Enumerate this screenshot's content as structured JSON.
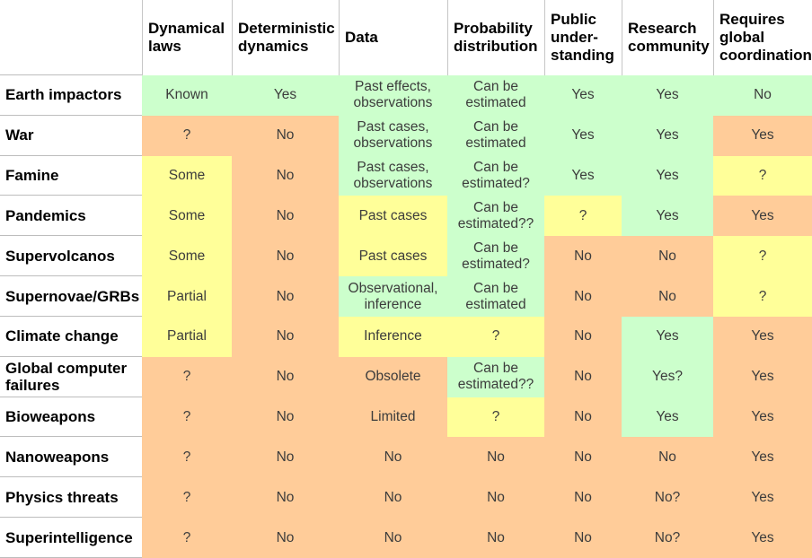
{
  "chart_data": {
    "type": "table",
    "corner_label": "",
    "colors": {
      "green": "#ccffcc",
      "yellow": "#ffff99",
      "orange": "#ffcc99"
    },
    "columns": [
      "Dynamical\nlaws",
      "Deterministic\ndynamics",
      "Data",
      "Probability\ndistribution",
      "Public\nunder-\nstanding",
      "Research\ncommunity",
      "Requires\nglobal\ncoordination"
    ],
    "rows": [
      {
        "label": "Earth impactors",
        "cells": [
          {
            "text": "Known",
            "color": "green"
          },
          {
            "text": "Yes",
            "color": "green"
          },
          {
            "text": "Past effects,\nobservations",
            "color": "green"
          },
          {
            "text": "Can be\nestimated",
            "color": "green"
          },
          {
            "text": "Yes",
            "color": "green"
          },
          {
            "text": "Yes",
            "color": "green"
          },
          {
            "text": "No",
            "color": "green"
          }
        ]
      },
      {
        "label": "War",
        "cells": [
          {
            "text": "?",
            "color": "orange"
          },
          {
            "text": "No",
            "color": "orange"
          },
          {
            "text": "Past cases,\nobservations",
            "color": "green"
          },
          {
            "text": "Can be\nestimated",
            "color": "green"
          },
          {
            "text": "Yes",
            "color": "green"
          },
          {
            "text": "Yes",
            "color": "green"
          },
          {
            "text": "Yes",
            "color": "orange"
          }
        ]
      },
      {
        "label": "Famine",
        "cells": [
          {
            "text": "Some",
            "color": "yellow"
          },
          {
            "text": "No",
            "color": "orange"
          },
          {
            "text": "Past cases,\nobservations",
            "color": "green"
          },
          {
            "text": "Can be\nestimated?",
            "color": "green"
          },
          {
            "text": "Yes",
            "color": "green"
          },
          {
            "text": "Yes",
            "color": "green"
          },
          {
            "text": "?",
            "color": "yellow"
          }
        ]
      },
      {
        "label": "Pandemics",
        "cells": [
          {
            "text": "Some",
            "color": "yellow"
          },
          {
            "text": "No",
            "color": "orange"
          },
          {
            "text": "Past cases",
            "color": "yellow"
          },
          {
            "text": "Can be\nestimated??",
            "color": "green"
          },
          {
            "text": "?",
            "color": "yellow"
          },
          {
            "text": "Yes",
            "color": "green"
          },
          {
            "text": "Yes",
            "color": "orange"
          }
        ]
      },
      {
        "label": "Supervolcanos",
        "cells": [
          {
            "text": "Some",
            "color": "yellow"
          },
          {
            "text": "No",
            "color": "orange"
          },
          {
            "text": "Past cases",
            "color": "yellow"
          },
          {
            "text": "Can be\nestimated?",
            "color": "green"
          },
          {
            "text": "No",
            "color": "orange"
          },
          {
            "text": "No",
            "color": "orange"
          },
          {
            "text": "?",
            "color": "yellow"
          }
        ]
      },
      {
        "label": "Supernovae/GRBs",
        "cells": [
          {
            "text": "Partial",
            "color": "yellow"
          },
          {
            "text": "No",
            "color": "orange"
          },
          {
            "text": "Observational,\ninference",
            "color": "green"
          },
          {
            "text": "Can be\nestimated",
            "color": "green"
          },
          {
            "text": "No",
            "color": "orange"
          },
          {
            "text": "No",
            "color": "orange"
          },
          {
            "text": "?",
            "color": "yellow"
          }
        ]
      },
      {
        "label": "Climate change",
        "cells": [
          {
            "text": "Partial",
            "color": "yellow"
          },
          {
            "text": "No",
            "color": "orange"
          },
          {
            "text": "Inference",
            "color": "yellow"
          },
          {
            "text": "?",
            "color": "yellow"
          },
          {
            "text": "No",
            "color": "orange"
          },
          {
            "text": "Yes",
            "color": "green"
          },
          {
            "text": "Yes",
            "color": "orange"
          }
        ]
      },
      {
        "label": "Global computer\nfailures",
        "cells": [
          {
            "text": "?",
            "color": "orange"
          },
          {
            "text": "No",
            "color": "orange"
          },
          {
            "text": "Obsolete",
            "color": "orange"
          },
          {
            "text": "Can be\nestimated??",
            "color": "green"
          },
          {
            "text": "No",
            "color": "orange"
          },
          {
            "text": "Yes?",
            "color": "green"
          },
          {
            "text": "Yes",
            "color": "orange"
          }
        ]
      },
      {
        "label": "Bioweapons",
        "cells": [
          {
            "text": "?",
            "color": "orange"
          },
          {
            "text": "No",
            "color": "orange"
          },
          {
            "text": "Limited",
            "color": "orange"
          },
          {
            "text": "?",
            "color": "yellow"
          },
          {
            "text": "No",
            "color": "orange"
          },
          {
            "text": "Yes",
            "color": "green"
          },
          {
            "text": "Yes",
            "color": "orange"
          }
        ]
      },
      {
        "label": "Nanoweapons",
        "cells": [
          {
            "text": "?",
            "color": "orange"
          },
          {
            "text": "No",
            "color": "orange"
          },
          {
            "text": "No",
            "color": "orange"
          },
          {
            "text": "No",
            "color": "orange"
          },
          {
            "text": "No",
            "color": "orange"
          },
          {
            "text": "No",
            "color": "orange"
          },
          {
            "text": "Yes",
            "color": "orange"
          }
        ]
      },
      {
        "label": "Physics threats",
        "cells": [
          {
            "text": "?",
            "color": "orange"
          },
          {
            "text": "No",
            "color": "orange"
          },
          {
            "text": "No",
            "color": "orange"
          },
          {
            "text": "No",
            "color": "orange"
          },
          {
            "text": "No",
            "color": "orange"
          },
          {
            "text": "No?",
            "color": "orange"
          },
          {
            "text": "Yes",
            "color": "orange"
          }
        ]
      },
      {
        "label": "Superintelligence",
        "cells": [
          {
            "text": "?",
            "color": "orange"
          },
          {
            "text": "No",
            "color": "orange"
          },
          {
            "text": "No",
            "color": "orange"
          },
          {
            "text": "No",
            "color": "orange"
          },
          {
            "text": "No",
            "color": "orange"
          },
          {
            "text": "No?",
            "color": "orange"
          },
          {
            "text": "Yes",
            "color": "orange"
          }
        ]
      }
    ]
  }
}
